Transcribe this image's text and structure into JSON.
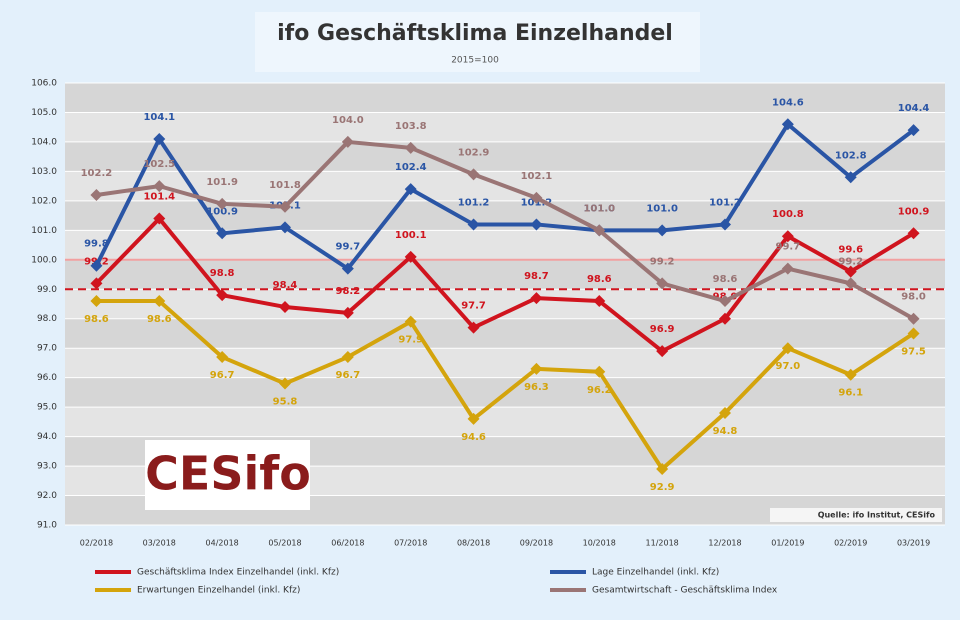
{
  "chart_data": {
    "type": "line",
    "title": "ifo Geschäftsklima Einzelhandel",
    "subtitle": "2015=100",
    "source": "Quelle: ifo Institut, CESifo",
    "logo": "CESifo",
    "categories": [
      "02/2018",
      "03/2018",
      "04/2018",
      "05/2018",
      "06/2018",
      "07/2018",
      "08/2018",
      "09/2018",
      "10/2018",
      "11/2018",
      "12/2018",
      "01/2019",
      "02/2019",
      "03/2019"
    ],
    "ylim": [
      91,
      106
    ],
    "yticks": [
      {
        "value": 91,
        "label": "91.0"
      },
      {
        "value": 92,
        "label": "92.0"
      },
      {
        "value": 93,
        "label": "93.0"
      },
      {
        "value": 94,
        "label": "94.0"
      },
      {
        "value": 95,
        "label": "95.0"
      },
      {
        "value": 96,
        "label": "96.0"
      },
      {
        "value": 97,
        "label": "97.0"
      },
      {
        "value": 98,
        "label": "98.0"
      },
      {
        "value": 99,
        "label": "99.0"
      },
      {
        "value": 100,
        "label": "100.0"
      },
      {
        "value": 101,
        "label": "101.0"
      },
      {
        "value": 102,
        "label": "102.0"
      },
      {
        "value": 103,
        "label": "103.0"
      },
      {
        "value": 104,
        "label": "104.0"
      },
      {
        "value": 105,
        "label": "105.0"
      },
      {
        "value": 106,
        "label": "106.0"
      }
    ],
    "grid": true,
    "reference_lines": [
      {
        "value": 100,
        "color": "#f2a0a0",
        "style": "solid"
      },
      {
        "value": 99,
        "color": "#d0141e",
        "style": "dashed"
      }
    ],
    "series": [
      {
        "name": "Geschäftsklima Index Einzelhandel (inkl. Kfz)",
        "color": "#d0141e",
        "values": [
          99.2,
          101.4,
          98.8,
          98.4,
          98.2,
          100.1,
          97.7,
          98.7,
          98.6,
          96.9,
          98.0,
          100.8,
          99.6,
          100.9
        ],
        "value_labels": [
          "99.2",
          "101.4",
          "98.8",
          "98.4",
          "98.2",
          "100.1",
          "97.7",
          "98.7",
          "98.6",
          "96.9",
          "98.0",
          "100.8",
          "99.6",
          "100.9"
        ]
      },
      {
        "name": "Lage Einzelhandel (inkl. Kfz)",
        "color": "#2a55a5",
        "values": [
          99.8,
          104.1,
          100.9,
          101.1,
          99.7,
          102.4,
          101.2,
          101.2,
          101.0,
          101.0,
          101.2,
          104.6,
          102.8,
          104.4
        ],
        "value_labels": [
          "99.8",
          "104.1",
          "100.9",
          "101.1",
          "99.7",
          "102.4",
          "101.2",
          "101.2",
          "101.0",
          "101.0",
          "101.2",
          "104.6",
          "102.8",
          "104.4"
        ]
      },
      {
        "name": "Erwartungen Einzelhandel (inkl. Kfz)",
        "color": "#d4a40c",
        "values": [
          98.6,
          98.6,
          96.7,
          95.8,
          96.7,
          97.9,
          94.6,
          96.3,
          96.2,
          92.9,
          94.8,
          97.0,
          96.1,
          97.5
        ],
        "value_labels": [
          "98.6",
          "98.6",
          "96.7",
          "95.8",
          "96.7",
          "97.9",
          "94.6",
          "96.3",
          "96.2",
          "92.9",
          "94.8",
          "97.0",
          "96.1",
          "97.5"
        ]
      },
      {
        "name": "Gesamtwirtschaft - Geschäftsklima Index",
        "color": "#9a7575",
        "values": [
          102.2,
          102.5,
          101.9,
          101.8,
          104.0,
          103.8,
          102.9,
          102.1,
          101.0,
          99.2,
          98.6,
          99.7,
          99.2,
          98.0
        ],
        "value_labels": [
          "102.2",
          "102.5",
          "101.9",
          "101.8",
          "104.0",
          "103.8",
          "102.9",
          "102.1",
          "101.0",
          "99.2",
          "98.6",
          "99.7",
          "99.2",
          "98.0"
        ]
      }
    ]
  }
}
